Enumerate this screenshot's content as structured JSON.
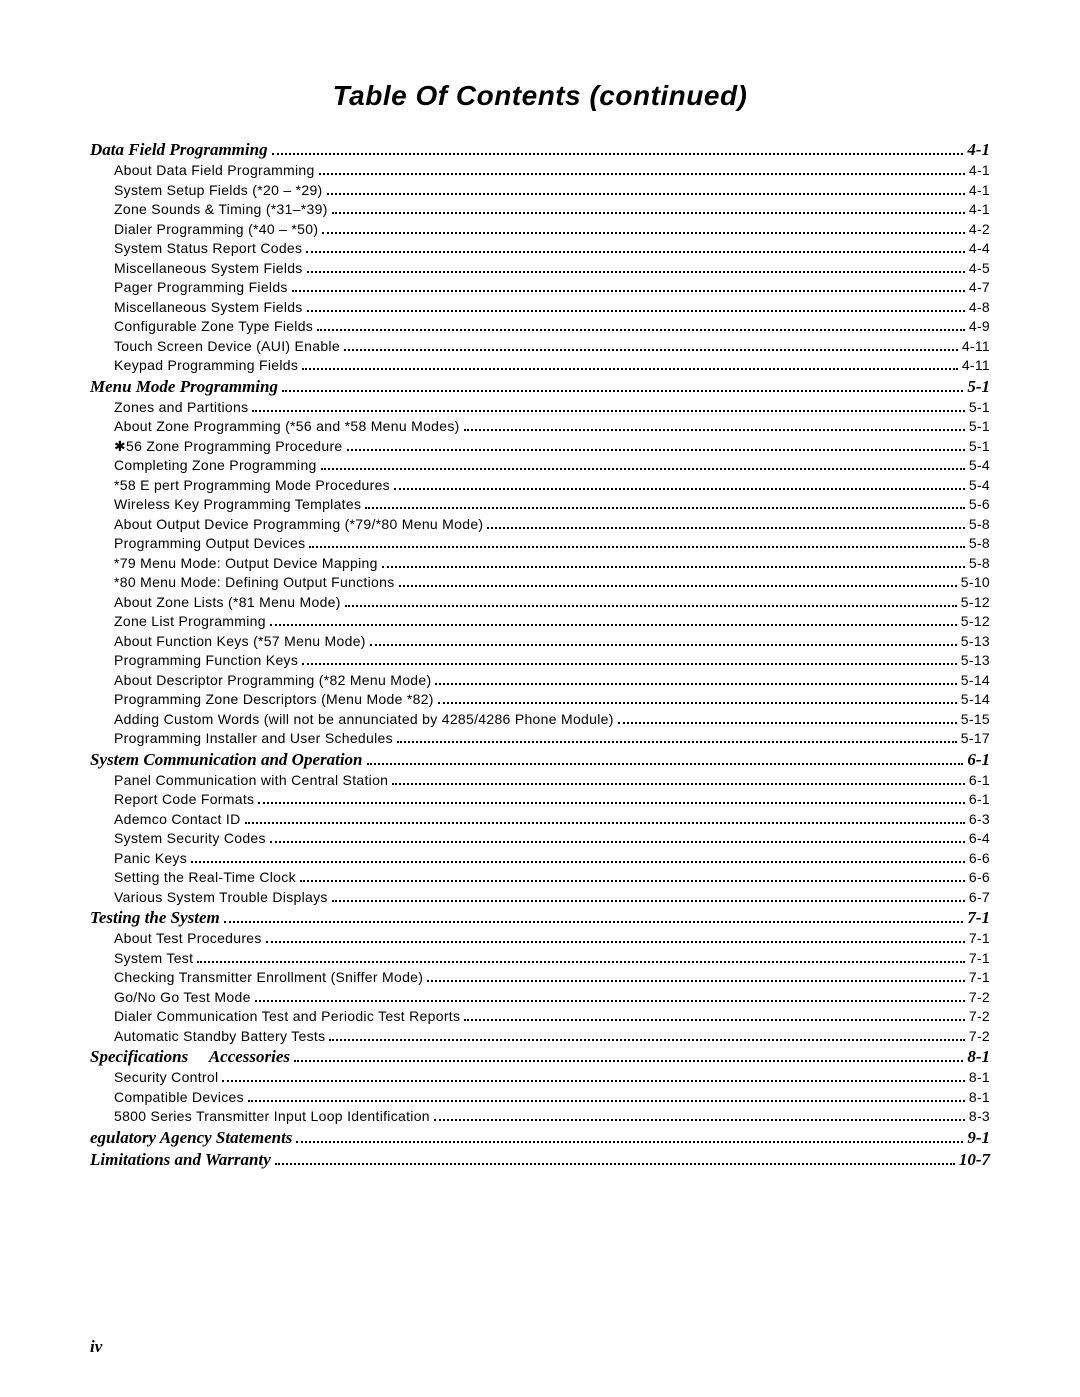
{
  "title": "Table Of Contents (continued)",
  "footer": "iv",
  "sections": [
    {
      "heading": "Data Field Programming",
      "page": "4-1",
      "entries": [
        {
          "label": "About Data Field Programming",
          "page": "4-1"
        },
        {
          "label": "System Setup Fields (*20 – *29)",
          "page": "4-1"
        },
        {
          "label": "Zone Sounds &  Timing (*31–*39)",
          "page": "4-1"
        },
        {
          "label": "Dialer Programming (*40 – *50)",
          "page": "4-2"
        },
        {
          "label": "System Status Report Codes",
          "page": "4-4"
        },
        {
          "label": "Miscellaneous System Fields",
          "page": "4-5"
        },
        {
          "label": "Pager Programming Fields",
          "page": "4-7"
        },
        {
          "label": "Miscellaneous System Fields",
          "page": "4-8"
        },
        {
          "label": "Configurable Zone Type Fields",
          "page": "4-9"
        },
        {
          "label": "Touch Screen Device (AUI) Enable",
          "page": "4-11"
        },
        {
          "label": "Keypad Programming Fields",
          "page": "4-11"
        }
      ]
    },
    {
      "heading": "Menu Mode Programming",
      "page": "5-1",
      "entries": [
        {
          "label": "Zones and Partitions",
          "page": "5-1"
        },
        {
          "label": "About Zone Programming (*56 and *58 Menu Modes)",
          "page": "5-1"
        },
        {
          "label": "✱56 Zone Programming Procedure",
          "page": "5-1"
        },
        {
          "label": "Completing Zone Programming",
          "page": "5-4"
        },
        {
          "label": "*58 E   pert Programming Mode Procedures",
          "page": "5-4"
        },
        {
          "label": "Wireless Key Programming Templates",
          "page": "5-6"
        },
        {
          "label": "About Output Device Programming (*79/*80 Menu Mode)",
          "page": "5-8"
        },
        {
          "label": "Programming Output Devices",
          "page": "5-8"
        },
        {
          "label": "*79 Menu Mode: Output Device Mapping",
          "page": "5-8"
        },
        {
          "label": "*80 Menu Mode: Defining Output Functions",
          "page": "5-10"
        },
        {
          "label": "About Zone Lists (*81 Menu Mode)",
          "page": "5-12"
        },
        {
          "label": "Zone List Programming",
          "page": "5-12"
        },
        {
          "label": "About Function Keys (*57 Menu Mode)",
          "page": "5-13"
        },
        {
          "label": "Programming Function Keys",
          "page": "5-13"
        },
        {
          "label": "About Descriptor Programming (*82 Menu Mode)",
          "page": "5-14"
        },
        {
          "label": "Programming Zone Descriptors (Menu Mode *82)",
          "page": "5-14"
        },
        {
          "label": "Adding Custom Words (will not be annunciated by 4285/4286 Phone Module)",
          "page": "5-15"
        },
        {
          "label": "Programming Installer and User Schedules",
          "page": "5-17"
        }
      ]
    },
    {
      "heading": "System Communication and Operation",
      "page": "6-1",
      "entries": [
        {
          "label": "Panel Communication with Central Station",
          "page": "6-1"
        },
        {
          "label": "Report Code Formats",
          "page": "6-1"
        },
        {
          "label": "Ademco Contact ID  ",
          "page": "6-3"
        },
        {
          "label": "System Security Codes",
          "page": "6-4"
        },
        {
          "label": "Panic Keys",
          "page": "6-6"
        },
        {
          "label": "Setting the Real-Time Clock",
          "page": "6-6"
        },
        {
          "label": "Various System Trouble Displays",
          "page": "6-7"
        }
      ]
    },
    {
      "heading": "Testing the System",
      "page": "7-1",
      "entries": [
        {
          "label": "About Test Procedures",
          "page": "7-1"
        },
        {
          "label": "System Test",
          "page": "7-1"
        },
        {
          "label": "Checking Transmitter Enrollment (Sniffer Mode)",
          "page": "7-1"
        },
        {
          "label": "Go/No Go Test Mode",
          "page": "7-2"
        },
        {
          "label": "Dialer Communication Test and Periodic Test Reports",
          "page": "7-2"
        },
        {
          "label": "Automatic Standby Battery Tests",
          "page": "7-2"
        }
      ]
    },
    {
      "heading": "Specifications  Accessories",
      "page": "8-1",
      "entries": [
        {
          "label": "Security Control",
          "page": "8-1"
        },
        {
          "label": "Compatible Devices",
          "page": "8-1"
        },
        {
          "label": "5800 Series Transmitter Input Loop Identification",
          "page": "8-3"
        }
      ]
    },
    {
      "heading": " egulatory Agency Statements",
      "page": "9-1",
      "entries": []
    },
    {
      "heading": "Limitations and Warranty",
      "page": "10-7",
      "entries": []
    }
  ]
}
